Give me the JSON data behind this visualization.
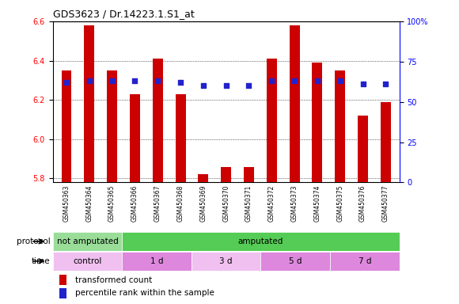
{
  "title": "GDS3623 / Dr.14223.1.S1_at",
  "samples": [
    "GSM450363",
    "GSM450364",
    "GSM450365",
    "GSM450366",
    "GSM450367",
    "GSM450368",
    "GSM450369",
    "GSM450370",
    "GSM450371",
    "GSM450372",
    "GSM450373",
    "GSM450374",
    "GSM450375",
    "GSM450376",
    "GSM450377"
  ],
  "transformed_count": [
    6.35,
    6.58,
    6.35,
    6.23,
    6.41,
    6.23,
    5.82,
    5.86,
    5.86,
    6.41,
    6.58,
    6.39,
    6.35,
    6.12,
    6.19
  ],
  "percentile_rank": [
    62,
    63,
    63,
    63,
    63,
    62,
    60,
    60,
    60,
    63,
    63,
    63,
    63,
    61,
    61
  ],
  "ylim_left": [
    5.78,
    6.6
  ],
  "ylim_right": [
    0,
    100
  ],
  "yticks_left": [
    5.8,
    6.0,
    6.2,
    6.4,
    6.6
  ],
  "yticks_right": [
    0,
    25,
    50,
    75,
    100
  ],
  "bar_color": "#cc0000",
  "dot_color": "#2222cc",
  "xtick_bg_color": "#cccccc",
  "protocol_not_amp_color": "#99dd99",
  "protocol_amp_color": "#55cc55",
  "time_control_color": "#f0c0f0",
  "time_1d_color": "#dd88dd",
  "time_3d_color": "#f0c0f0",
  "time_5d_color": "#dd88dd",
  "time_7d_color": "#dd88dd",
  "protocol_groups": [
    {
      "label": "not amputated",
      "start": 0,
      "end": 3,
      "color": "#99dd99"
    },
    {
      "label": "amputated",
      "start": 3,
      "end": 15,
      "color": "#55cc55"
    }
  ],
  "time_groups": [
    {
      "label": "control",
      "start": 0,
      "end": 3,
      "color": "#f0c0f0"
    },
    {
      "label": "1 d",
      "start": 3,
      "end": 6,
      "color": "#dd88dd"
    },
    {
      "label": "3 d",
      "start": 6,
      "end": 9,
      "color": "#f0c0f0"
    },
    {
      "label": "5 d",
      "start": 9,
      "end": 12,
      "color": "#dd88dd"
    },
    {
      "label": "7 d",
      "start": 12,
      "end": 15,
      "color": "#dd88dd"
    }
  ],
  "legend_items": [
    {
      "label": "transformed count",
      "color": "#cc0000"
    },
    {
      "label": "percentile rank within the sample",
      "color": "#2222cc"
    }
  ]
}
